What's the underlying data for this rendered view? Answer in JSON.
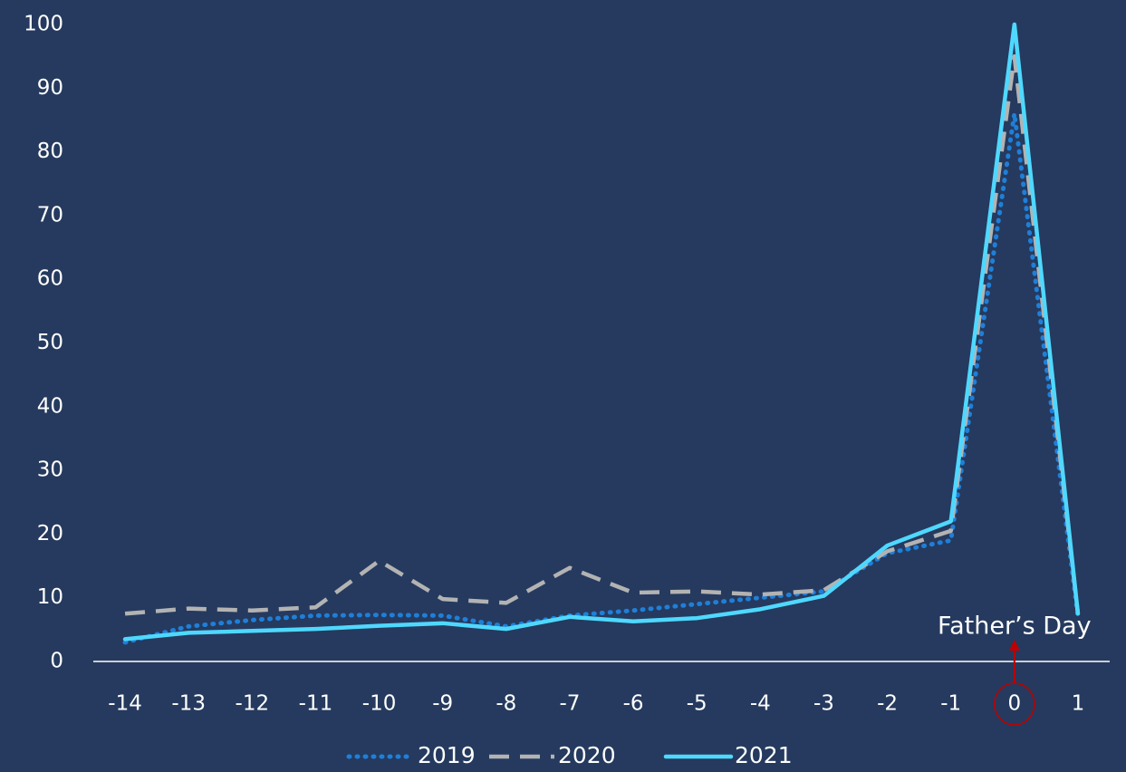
{
  "chart_data": {
    "type": "line",
    "categories": [
      -14,
      -13,
      -12,
      -11,
      -10,
      -9,
      -8,
      -7,
      -6,
      -5,
      -4,
      -3,
      -2,
      -1,
      0,
      1
    ],
    "series": [
      {
        "name": "2019",
        "color": "#1f7fd8",
        "line_style": "dotted",
        "values": [
          3,
          5.5,
          6.5,
          7.2,
          7.3,
          7.2,
          5.5,
          7.2,
          8,
          9,
          10,
          11,
          17,
          19,
          86,
          7
        ]
      },
      {
        "name": "2020",
        "color": "#b3b3b3",
        "line_style": "dashed",
        "values": [
          7.5,
          8.3,
          8,
          8.5,
          15.8,
          9.8,
          9.2,
          14.7,
          10.8,
          11,
          10.5,
          11.2,
          17.3,
          20.5,
          95,
          7.5
        ]
      },
      {
        "name": "2021",
        "color": "#4fd8ff",
        "line_style": "solid",
        "values": [
          3.5,
          4.5,
          4.8,
          5.1,
          5.6,
          6,
          5.1,
          7,
          6.3,
          6.8,
          8.2,
          10.3,
          18.2,
          22,
          100,
          7.5
        ]
      }
    ],
    "ylim": [
      0,
      100
    ],
    "yticks": [
      0,
      10,
      20,
      30,
      40,
      50,
      60,
      70,
      80,
      90,
      100
    ],
    "grid": false,
    "annotation": {
      "text": "Father’s Day",
      "category": 0,
      "color": "#c00000"
    },
    "legend": "bottom"
  }
}
